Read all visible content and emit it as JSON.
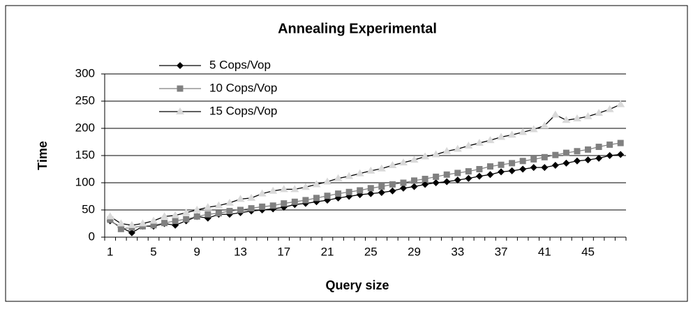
{
  "chart_data": {
    "type": "line",
    "title": "Annealing Experimental",
    "x_label": "Query size",
    "y_label": "Time",
    "categories": [
      1,
      null,
      null,
      null,
      5,
      null,
      null,
      null,
      9,
      null,
      null,
      null,
      13,
      null,
      null,
      null,
      17,
      null,
      null,
      null,
      21,
      null,
      null,
      null,
      25,
      null,
      null,
      null,
      29,
      null,
      null,
      null,
      33,
      null,
      null,
      null,
      37,
      null,
      null,
      null,
      41,
      null,
      null,
      null,
      45,
      null,
      null,
      null
    ],
    "series": [
      {
        "name": "5 Cops/Vop",
        "color": "#000000",
        "line_color": "#000000",
        "marker": "diamond",
        "values": [
          30,
          18,
          8,
          20,
          20,
          25,
          22,
          30,
          38,
          35,
          42,
          42,
          45,
          48,
          50,
          52,
          55,
          60,
          62,
          65,
          68,
          72,
          75,
          78,
          80,
          82,
          85,
          90,
          93,
          97,
          100,
          102,
          105,
          108,
          112,
          115,
          120,
          122,
          125,
          128,
          128,
          132,
          136,
          140,
          142,
          145,
          150,
          152
        ]
      },
      {
        "name": "10 Cops/Vop",
        "color": "#808080",
        "line_color": "#808080",
        "marker": "square",
        "values": [
          32,
          15,
          18,
          20,
          22,
          26,
          30,
          33,
          38,
          42,
          44,
          48,
          50,
          53,
          56,
          58,
          62,
          65,
          68,
          72,
          76,
          80,
          83,
          86,
          90,
          93,
          97,
          100,
          104,
          107,
          111,
          115,
          118,
          121,
          125,
          130,
          133,
          136,
          140,
          143,
          147,
          151,
          155,
          158,
          161,
          166,
          170,
          173
        ]
      },
      {
        "name": "15 Cops/Vop",
        "color": "#d9d9d9",
        "line_color": "#000000",
        "marker": "triangle",
        "values": [
          38,
          25,
          22,
          25,
          30,
          38,
          40,
          45,
          50,
          55,
          58,
          63,
          70,
          72,
          80,
          85,
          88,
          88,
          92,
          97,
          102,
          108,
          112,
          117,
          122,
          126,
          132,
          137,
          142,
          148,
          152,
          158,
          162,
          168,
          173,
          178,
          184,
          188,
          193,
          198,
          205,
          225,
          215,
          218,
          222,
          228,
          235,
          244
        ]
      }
    ],
    "ylim": [
      0,
      300
    ],
    "yticks": [
      0,
      50,
      100,
      150,
      200,
      250,
      300
    ],
    "grid": true,
    "legend": "upper left"
  }
}
